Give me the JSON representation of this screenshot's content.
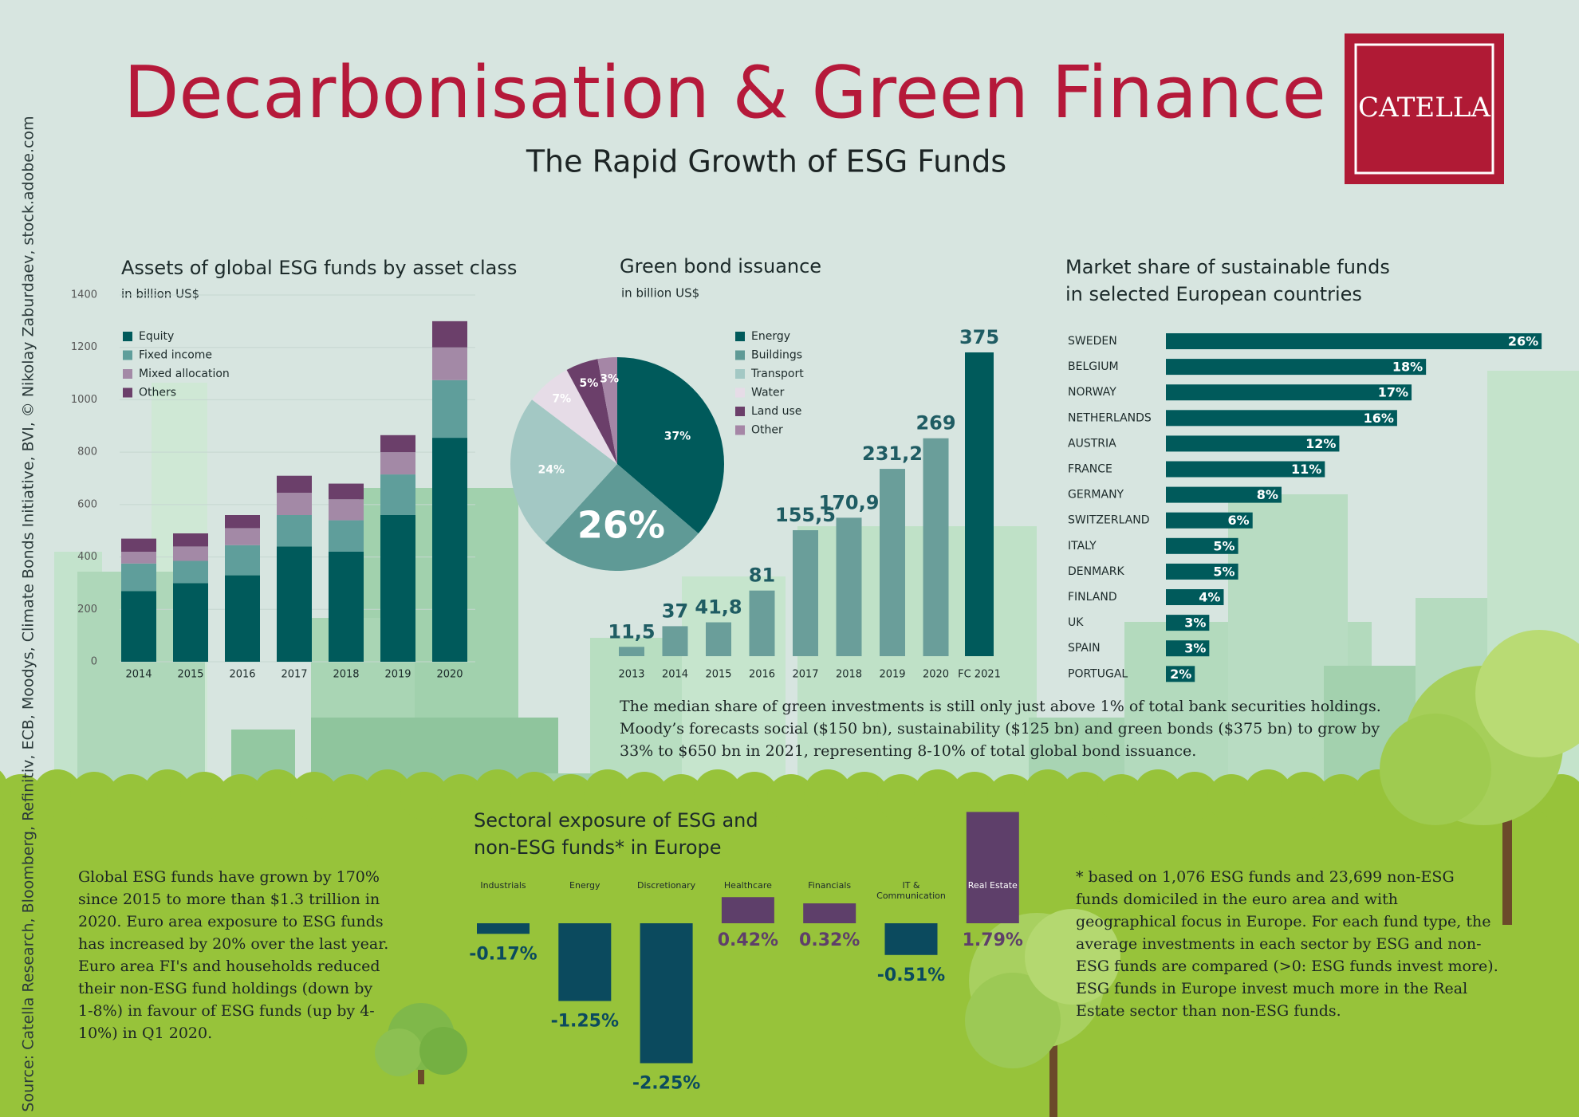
{
  "header": {
    "title": "Decarbonisation & Green Finance",
    "subtitle": "The Rapid Growth of ESG Funds",
    "logo": "CATELLA",
    "source": "Source: Catella Research, Bloomberg, Refinitiv, ECB, Moodys, Climate Bonds Initiative, BVI, © Nikolay Zaburdaev, stock.adobe.com"
  },
  "chart_data": [
    {
      "type": "stacked_bar",
      "title": "Assets of global ESG funds by asset class",
      "subtitle": "in billion US$",
      "categories": [
        "2014",
        "2015",
        "2016",
        "2017",
        "2018",
        "2019",
        "2020"
      ],
      "series": [
        {
          "name": "Equity",
          "color": "#005a5b",
          "values": [
            270,
            300,
            330,
            440,
            420,
            560,
            855
          ]
        },
        {
          "name": "Fixed income",
          "color": "#5f9e9b",
          "values": [
            105,
            85,
            115,
            120,
            120,
            155,
            220
          ]
        },
        {
          "name": "Mixed allocation",
          "color": "#a389a6",
          "values": [
            45,
            55,
            65,
            85,
            80,
            85,
            125
          ]
        },
        {
          "name": "Others",
          "color": "#6b3f6a",
          "values": [
            50,
            50,
            50,
            65,
            60,
            65,
            100
          ]
        }
      ],
      "ylim": [
        0,
        1400
      ],
      "yticks": [
        0,
        200,
        400,
        600,
        800,
        1000,
        1200,
        1400
      ],
      "grid": true
    },
    {
      "type": "pie",
      "categories": [
        "Energy",
        "Buildings",
        "Transport",
        "Water",
        "Land use",
        "Other"
      ],
      "values": [
        37,
        26,
        24,
        7,
        5,
        3
      ],
      "value_labels": [
        "37%",
        "26%",
        "24%",
        "7%",
        "5%",
        "3%"
      ],
      "colors": [
        "#005a5b",
        "#5f9a96",
        "#a3c8c4",
        "#e6dce7",
        "#6b3f6a",
        "#a586a6"
      ]
    },
    {
      "type": "bar",
      "title": "Green bond issuance",
      "subtitle": "in billion US$",
      "categories": [
        "2013",
        "2014",
        "2015",
        "2016",
        "2017",
        "2018",
        "2019",
        "2020",
        "FC 2021"
      ],
      "values": [
        11.5,
        37,
        41.8,
        81,
        155.5,
        170.9,
        231.2,
        269,
        375
      ],
      "value_labels": [
        "11,5",
        "37",
        "41,8",
        "81",
        "155,5",
        "170,9",
        "231,2",
        "269",
        "375"
      ],
      "colors": [
        "#6a9e9a",
        "#6a9e9a",
        "#6a9e9a",
        "#6a9e9a",
        "#6a9e9a",
        "#6a9e9a",
        "#6a9e9a",
        "#6a9e9a",
        "#005a5b"
      ]
    },
    {
      "type": "bar",
      "orientation": "horizontal",
      "title": "Market share of sustainable funds in selected European countries",
      "categories": [
        "SWEDEN",
        "BELGIUM",
        "NORWAY",
        "NETHERLANDS",
        "AUSTRIA",
        "FRANCE",
        "GERMANY",
        "SWITZERLAND",
        "ITALY",
        "DENMARK",
        "FINLAND",
        "UK",
        "SPAIN",
        "PORTUGAL"
      ],
      "values": [
        26,
        18,
        17,
        16,
        12,
        11,
        8,
        6,
        5,
        5,
        4,
        3,
        3,
        2
      ],
      "value_labels": [
        "26%",
        "18%",
        "17%",
        "16%",
        "12%",
        "11%",
        "8%",
        "6%",
        "5%",
        "5%",
        "4%",
        "3%",
        "3%",
        "2%"
      ],
      "color": "#005a5b"
    },
    {
      "type": "bar",
      "title": "Sectoral exposure of ESG and non-ESG funds* in Europe",
      "categories": [
        "Industrials",
        "Energy",
        "Discretionary",
        "Healthcare",
        "Financials",
        "IT & Communication",
        "Real Estate"
      ],
      "values": [
        -0.17,
        -1.25,
        -2.25,
        0.42,
        0.32,
        -0.51,
        1.79
      ],
      "value_labels": [
        "-0.17%",
        "-1.25%",
        "-2.25%",
        "0.42%",
        "0.32%",
        "-0.51%",
        "1.79%"
      ],
      "colors": [
        "#0b4a5e",
        "#0b4a5e",
        "#0b4a5e",
        "#5e3f6a",
        "#5e3f6a",
        "#0b4a5e",
        "#5e3f6a"
      ]
    }
  ],
  "notes": {
    "bonds": "The median share of green investments is still only just above 1% of total bank securities holdings. Moody’s forecasts social ($150 bn), sustainability ($125 bn) and green bonds ($375 bn) to grow by 33% to $650 bn in 2021, representing 8-10% of total global bond issuance.",
    "growth": "Global ESG funds have grown by 170% since 2015 to more than $1.3 trillion in 2020. Euro area exposure to ESG funds has increased by 20% over the last year. Euro area FI's and households reduced their non-ESG fund holdings (down by 1-8%) in favour of ESG funds (up by 4-10%) in Q1 2020.",
    "footnote": "* based on 1,076 ESG funds and 23,699 non-ESG funds domiciled in the euro area and with geographical focus in Europe. For each fund type, the average investments in each sector by ESG and non-ESG funds are compared (>0: ESG funds invest more). ESG funds in Europe invest much more in the Real Estate sector than non-ESG funds."
  }
}
